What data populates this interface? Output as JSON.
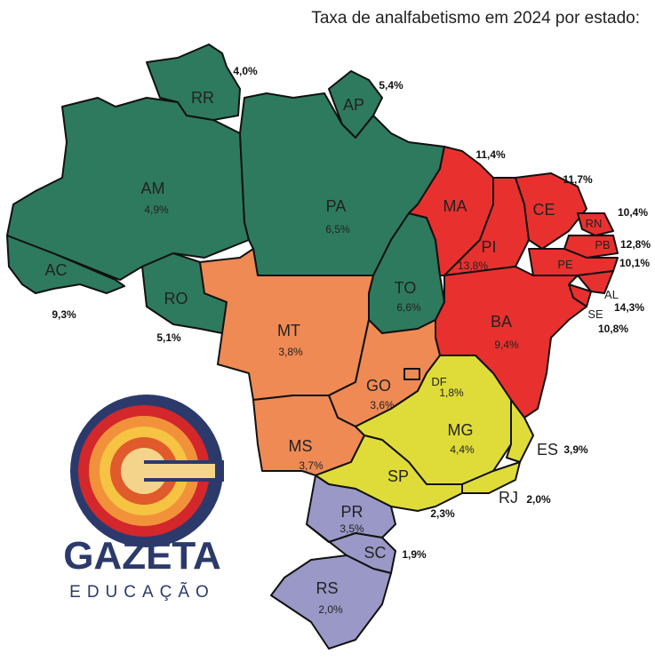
{
  "title": "Taxa de analfabetismo em 2024 por estado:",
  "states": [
    {
      "abbr": "RR",
      "value": "4,0%"
    },
    {
      "abbr": "AP",
      "value": "5,4%"
    },
    {
      "abbr": "AM",
      "value": "4,9%"
    },
    {
      "abbr": "PA",
      "value": "6,5%"
    },
    {
      "abbr": "AC",
      "value": "9,3%"
    },
    {
      "abbr": "RO",
      "value": "5,1%"
    },
    {
      "abbr": "TO",
      "value": "6,6%"
    },
    {
      "abbr": "MA",
      "value": "11,4%"
    },
    {
      "abbr": "PI",
      "value": "13,8%"
    },
    {
      "abbr": "CE",
      "value": "11,7%"
    },
    {
      "abbr": "RN",
      "value": "10,4%"
    },
    {
      "abbr": "PB",
      "value": "12,8%"
    },
    {
      "abbr": "PE",
      "value": "10,1%"
    },
    {
      "abbr": "AL",
      "value": "14,3%"
    },
    {
      "abbr": "SE",
      "value": "10,8%"
    },
    {
      "abbr": "BA",
      "value": "9,4%"
    },
    {
      "abbr": "MT",
      "value": "3,8%"
    },
    {
      "abbr": "GO",
      "value": "3,6%"
    },
    {
      "abbr": "DF",
      "value": "1,8%"
    },
    {
      "abbr": "MS",
      "value": "3,7%"
    },
    {
      "abbr": "MG",
      "value": "4,4%"
    },
    {
      "abbr": "ES",
      "value": "3,9%"
    },
    {
      "abbr": "RJ",
      "value": "2,0%"
    },
    {
      "abbr": "SP",
      "value": "2,3%"
    },
    {
      "abbr": "PR",
      "value": "3,5%"
    },
    {
      "abbr": "SC",
      "value": "1,9%"
    },
    {
      "abbr": "RS",
      "value": "2,0%"
    }
  ],
  "logo": {
    "name": "GAZETA",
    "subtitle": "EDUCAÇÃO"
  }
}
